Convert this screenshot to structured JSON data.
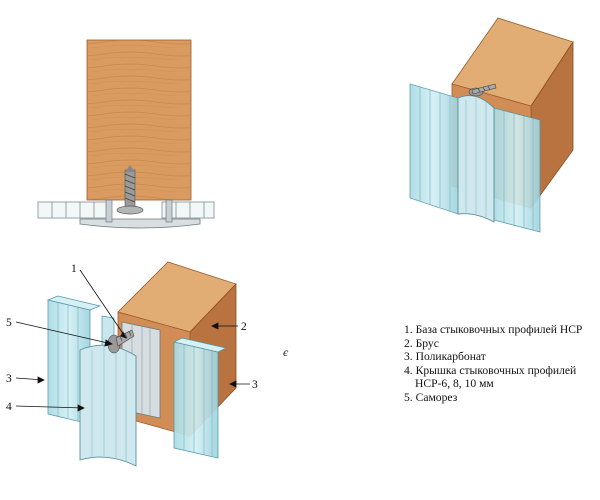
{
  "callouts": {
    "n1": "1",
    "n2": "2",
    "n3_left": "3",
    "n3_right": "3",
    "n4": "4",
    "n5": "5"
  },
  "side_mark": "є",
  "legend": {
    "item1": "1. База стыковочных профилей НСР",
    "item2": "2. Брус",
    "item3": "3. Поликарбонат",
    "item4_line1": "4. Крышка стыковочных профилей",
    "item4_line2": "НСР-6, 8, 10 мм",
    "item5": "5. Саморез"
  },
  "colors": {
    "wood": "#d79a62",
    "wood_dark": "#c07a45",
    "wood_grain": "#a8683a",
    "polycarbonate": "#b7e3ea",
    "polycarbonate_edge": "#5fa3b2",
    "aluminum": "#cfd6da",
    "screw": "#8a8a8a"
  }
}
